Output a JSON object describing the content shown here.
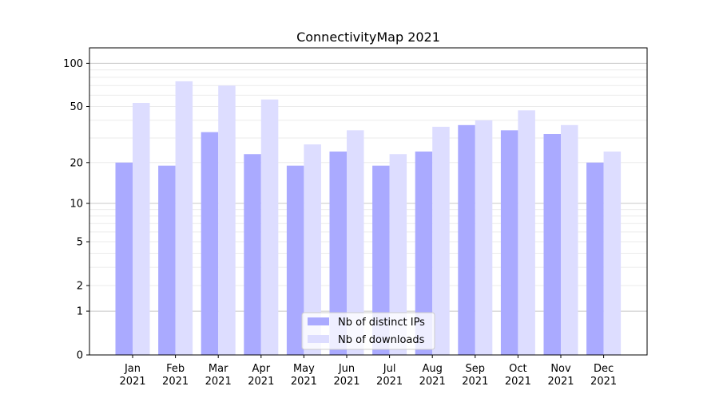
{
  "chart_data": {
    "type": "bar",
    "title": "ConnectivityMap 2021",
    "xlabel": "",
    "ylabel": "",
    "yscale": "log10(y+1)",
    "ylim": [
      0,
      128
    ],
    "yticks": [
      0,
      1,
      2,
      5,
      10,
      20,
      50,
      100
    ],
    "categories": [
      "Jan\n2021",
      "Feb\n2021",
      "Mar\n2021",
      "Apr\n2021",
      "May\n2021",
      "Jun\n2021",
      "Jul\n2021",
      "Aug\n2021",
      "Sep\n2021",
      "Oct\n2021",
      "Nov\n2021",
      "Dec\n2021"
    ],
    "series": [
      {
        "name": "Nb of distinct IPs",
        "color": "#aaaaff",
        "values": [
          20,
          19,
          33,
          23,
          19,
          24,
          19,
          24,
          37,
          34,
          32,
          20
        ]
      },
      {
        "name": "Nb of downloads",
        "color": "#ddddff",
        "values": [
          53,
          75,
          70,
          56,
          27,
          34,
          23,
          36,
          40,
          47,
          37,
          24
        ]
      }
    ],
    "grid": true,
    "legend_position": "lower-center"
  }
}
